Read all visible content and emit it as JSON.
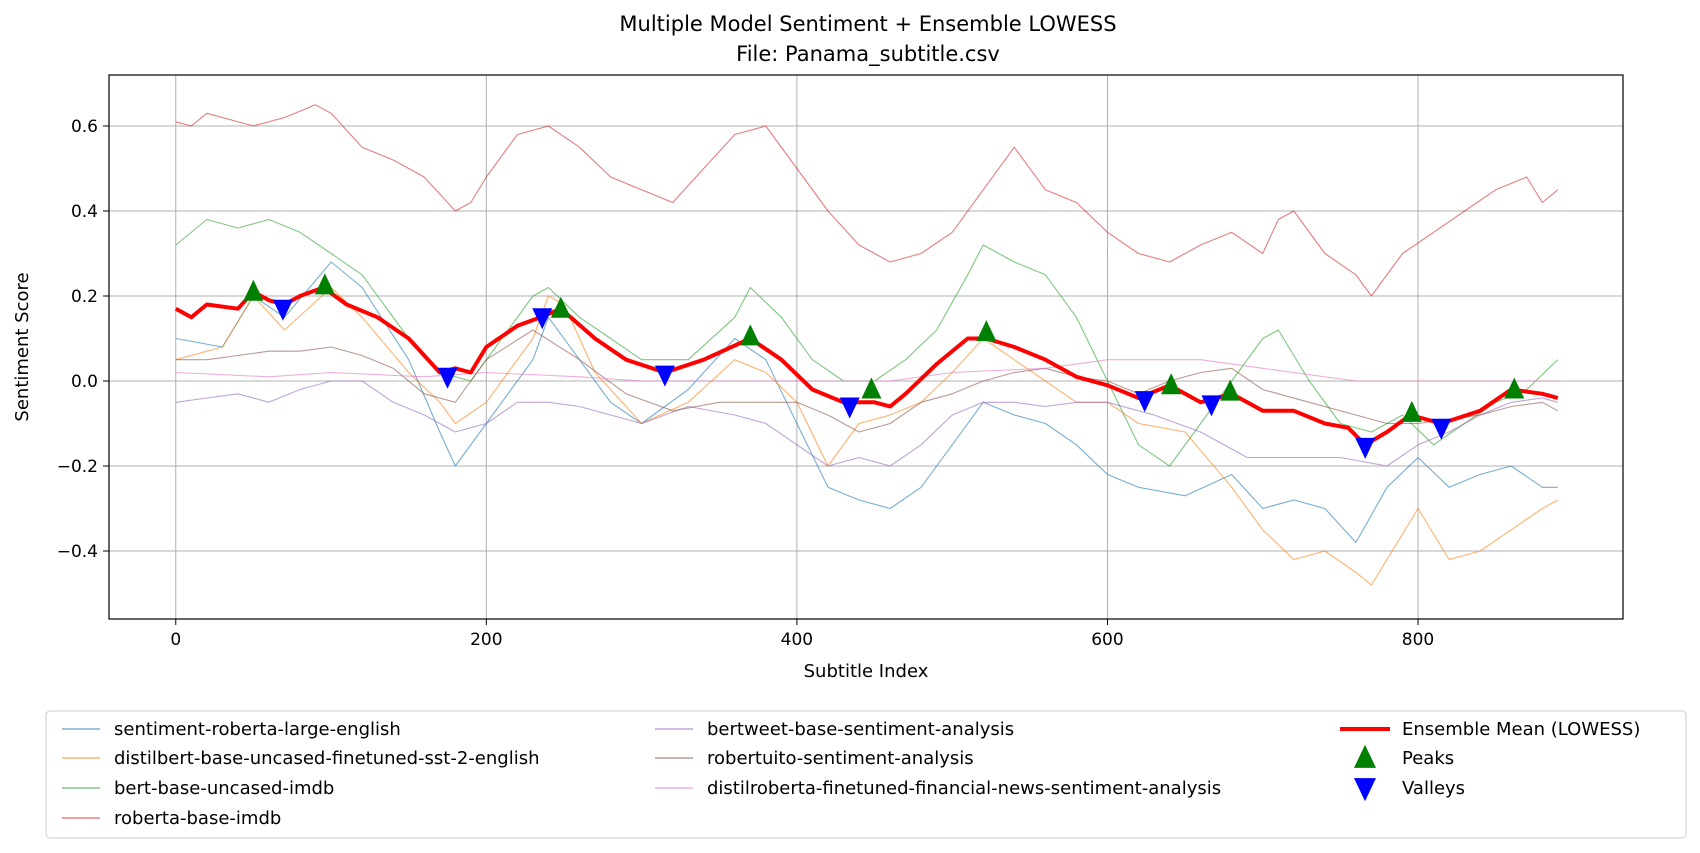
{
  "chart_data": {
    "type": "line",
    "title": "Multiple Model Sentiment + Ensemble LOWESS",
    "subtitle": "File: Panama_subtitle.csv",
    "xlabel": "Subtitle Index",
    "ylabel": "Sentiment Score",
    "xlim": [
      -43,
      932
    ],
    "ylim": [
      -0.56,
      0.72
    ],
    "xticks": [
      0,
      200,
      400,
      600,
      800
    ],
    "xtick_labels": [
      "0",
      "200",
      "400",
      "600",
      "800"
    ],
    "yticks": [
      -0.4,
      -0.2,
      0.0,
      0.2,
      0.4,
      0.6
    ],
    "ytick_labels": [
      "−0.4",
      "−0.2",
      "0.0",
      "0.2",
      "0.4",
      "0.6"
    ],
    "grid": true,
    "legend_position": "below-plot",
    "series": [
      {
        "name": "sentiment-roberta-large-english",
        "color": "#1f77b4",
        "x": [
          0,
          30,
          50,
          70,
          100,
          120,
          150,
          170,
          180,
          200,
          230,
          240,
          260,
          280,
          300,
          330,
          360,
          380,
          400,
          420,
          440,
          460,
          480,
          500,
          520,
          540,
          560,
          580,
          600,
          620,
          650,
          680,
          700,
          720,
          740,
          760,
          780,
          800,
          820,
          840,
          860,
          880,
          890
        ],
        "y": [
          0.1,
          0.08,
          0.2,
          0.15,
          0.28,
          0.22,
          0.05,
          -0.12,
          -0.2,
          -0.1,
          0.05,
          0.15,
          0.05,
          -0.05,
          -0.1,
          -0.02,
          0.1,
          0.05,
          -0.1,
          -0.25,
          -0.28,
          -0.3,
          -0.25,
          -0.15,
          -0.05,
          -0.08,
          -0.1,
          -0.15,
          -0.22,
          -0.25,
          -0.27,
          -0.22,
          -0.3,
          -0.28,
          -0.3,
          -0.38,
          -0.25,
          -0.18,
          -0.25,
          -0.22,
          -0.2,
          -0.25,
          -0.25
        ]
      },
      {
        "name": "distilbert-base-uncased-finetuned-sst-2-english",
        "color": "#ff7f0e",
        "x": [
          0,
          30,
          50,
          70,
          100,
          120,
          150,
          170,
          180,
          200,
          230,
          240,
          250,
          270,
          300,
          330,
          360,
          380,
          400,
          420,
          440,
          460,
          480,
          500,
          520,
          540,
          560,
          580,
          600,
          620,
          650,
          680,
          700,
          720,
          740,
          760,
          770,
          780,
          800,
          820,
          840,
          860,
          880,
          890
        ],
        "y": [
          0.05,
          0.08,
          0.2,
          0.12,
          0.22,
          0.15,
          0.02,
          -0.05,
          -0.1,
          -0.05,
          0.1,
          0.2,
          0.18,
          0.02,
          -0.1,
          -0.05,
          0.05,
          0.02,
          -0.05,
          -0.2,
          -0.1,
          -0.08,
          -0.05,
          0.02,
          0.1,
          0.05,
          0.0,
          -0.05,
          -0.05,
          -0.1,
          -0.12,
          -0.25,
          -0.35,
          -0.42,
          -0.4,
          -0.45,
          -0.48,
          -0.42,
          -0.3,
          -0.42,
          -0.4,
          -0.35,
          -0.3,
          -0.28
        ]
      },
      {
        "name": "bert-base-uncased-imdb",
        "color": "#2ca02c",
        "x": [
          0,
          20,
          40,
          60,
          80,
          100,
          120,
          150,
          170,
          190,
          210,
          230,
          240,
          260,
          280,
          300,
          330,
          360,
          370,
          390,
          410,
          430,
          450,
          470,
          490,
          510,
          520,
          540,
          560,
          580,
          600,
          620,
          640,
          660,
          680,
          700,
          710,
          730,
          750,
          770,
          790,
          810,
          830,
          850,
          870,
          890
        ],
        "y": [
          0.32,
          0.38,
          0.36,
          0.38,
          0.35,
          0.3,
          0.25,
          0.1,
          0.02,
          0.0,
          0.1,
          0.2,
          0.22,
          0.15,
          0.1,
          0.05,
          0.05,
          0.15,
          0.22,
          0.15,
          0.05,
          0.0,
          0.0,
          0.05,
          0.12,
          0.25,
          0.32,
          0.28,
          0.25,
          0.15,
          0.0,
          -0.15,
          -0.2,
          -0.1,
          0.0,
          0.1,
          0.12,
          0.0,
          -0.1,
          -0.12,
          -0.08,
          -0.15,
          -0.1,
          -0.05,
          -0.02,
          0.05
        ]
      },
      {
        "name": "roberta-base-imdb",
        "color": "#d62728",
        "x": [
          0,
          10,
          20,
          30,
          50,
          70,
          90,
          100,
          120,
          140,
          160,
          180,
          190,
          200,
          220,
          240,
          260,
          280,
          300,
          320,
          340,
          360,
          380,
          400,
          420,
          440,
          460,
          480,
          500,
          520,
          540,
          560,
          580,
          600,
          620,
          640,
          660,
          680,
          700,
          710,
          720,
          740,
          760,
          770,
          790,
          810,
          830,
          850,
          870,
          880,
          890
        ],
        "y": [
          0.61,
          0.6,
          0.63,
          0.62,
          0.6,
          0.62,
          0.65,
          0.63,
          0.55,
          0.52,
          0.48,
          0.4,
          0.42,
          0.48,
          0.58,
          0.6,
          0.55,
          0.48,
          0.45,
          0.42,
          0.5,
          0.58,
          0.6,
          0.5,
          0.4,
          0.32,
          0.28,
          0.3,
          0.35,
          0.45,
          0.55,
          0.45,
          0.42,
          0.35,
          0.3,
          0.28,
          0.32,
          0.35,
          0.3,
          0.38,
          0.4,
          0.3,
          0.25,
          0.2,
          0.3,
          0.35,
          0.4,
          0.45,
          0.48,
          0.42,
          0.45
        ]
      },
      {
        "name": "bertweet-base-sentiment-analysis",
        "color": "#9467bd",
        "x": [
          0,
          20,
          40,
          60,
          80,
          100,
          120,
          140,
          160,
          180,
          200,
          220,
          240,
          260,
          280,
          300,
          330,
          360,
          380,
          400,
          420,
          440,
          460,
          480,
          500,
          520,
          540,
          560,
          580,
          600,
          630,
          660,
          690,
          720,
          750,
          780,
          800,
          820,
          840,
          860,
          880,
          890
        ],
        "y": [
          -0.05,
          -0.04,
          -0.03,
          -0.05,
          -0.02,
          0.0,
          0.0,
          -0.05,
          -0.08,
          -0.12,
          -0.1,
          -0.05,
          -0.05,
          -0.06,
          -0.08,
          -0.1,
          -0.06,
          -0.08,
          -0.1,
          -0.15,
          -0.2,
          -0.18,
          -0.2,
          -0.15,
          -0.08,
          -0.05,
          -0.05,
          -0.06,
          -0.05,
          -0.05,
          -0.08,
          -0.12,
          -0.18,
          -0.18,
          -0.18,
          -0.2,
          -0.15,
          -0.12,
          -0.08,
          -0.05,
          -0.04,
          -0.05
        ]
      },
      {
        "name": "robertuito-sentiment-analysis",
        "color": "#8c564b",
        "x": [
          0,
          20,
          40,
          60,
          80,
          100,
          120,
          140,
          160,
          180,
          200,
          230,
          260,
          290,
          320,
          350,
          380,
          400,
          420,
          440,
          460,
          480,
          500,
          520,
          540,
          560,
          580,
          600,
          620,
          640,
          660,
          680,
          700,
          730,
          760,
          780,
          800,
          820,
          840,
          860,
          880,
          890
        ],
        "y": [
          0.05,
          0.05,
          0.06,
          0.07,
          0.07,
          0.08,
          0.06,
          0.03,
          -0.03,
          -0.05,
          0.05,
          0.12,
          0.05,
          -0.03,
          -0.07,
          -0.05,
          -0.05,
          -0.05,
          -0.08,
          -0.12,
          -0.1,
          -0.05,
          -0.03,
          0.0,
          0.02,
          0.03,
          0.01,
          0.0,
          -0.03,
          0.0,
          0.02,
          0.03,
          -0.02,
          -0.05,
          -0.08,
          -0.1,
          -0.1,
          -0.09,
          -0.08,
          -0.06,
          -0.05,
          -0.07
        ]
      },
      {
        "name": "distilroberta-finetuned-financial-news-sentiment-analysis",
        "color": "#e377c2",
        "x": [
          0,
          60,
          100,
          160,
          200,
          260,
          300,
          360,
          400,
          460,
          500,
          560,
          600,
          660,
          700,
          760,
          800,
          860,
          890
        ],
        "y": [
          0.02,
          0.01,
          0.02,
          0.01,
          0.02,
          0.01,
          0.0,
          0.0,
          0.0,
          0.0,
          0.02,
          0.03,
          0.05,
          0.05,
          0.03,
          0.0,
          0.0,
          0.0,
          0.0
        ]
      },
      {
        "name": "Ensemble Mean (LOWESS)",
        "color": "#ff0000",
        "x": [
          0,
          10,
          20,
          40,
          50,
          60,
          70,
          80,
          95,
          110,
          130,
          150,
          170,
          180,
          190,
          200,
          220,
          235,
          248,
          270,
          290,
          315,
          340,
          370,
          390,
          410,
          430,
          450,
          460,
          470,
          490,
          510,
          522,
          540,
          560,
          580,
          600,
          620,
          640,
          660,
          680,
          700,
          720,
          740,
          755,
          766,
          780,
          795,
          815,
          840,
          860,
          880,
          890
        ],
        "y": [
          0.17,
          0.15,
          0.18,
          0.17,
          0.21,
          0.19,
          0.18,
          0.2,
          0.22,
          0.18,
          0.15,
          0.1,
          0.02,
          0.03,
          0.02,
          0.08,
          0.13,
          0.15,
          0.17,
          0.1,
          0.05,
          0.02,
          0.05,
          0.1,
          0.05,
          -0.02,
          -0.05,
          -0.05,
          -0.06,
          -0.03,
          0.04,
          0.1,
          0.1,
          0.08,
          0.05,
          0.01,
          -0.01,
          -0.04,
          -0.01,
          -0.05,
          -0.03,
          -0.07,
          -0.07,
          -0.1,
          -0.11,
          -0.15,
          -0.12,
          -0.08,
          -0.1,
          -0.07,
          -0.02,
          -0.03,
          -0.04
        ]
      }
    ],
    "peaks": {
      "name": "Peaks",
      "color": "#008000",
      "x": [
        50,
        96,
        248,
        370,
        448,
        522,
        641,
        679,
        796,
        862
      ],
      "y": [
        0.21,
        0.225,
        0.17,
        0.105,
        -0.02,
        0.115,
        -0.01,
        -0.025,
        -0.075,
        -0.02
      ]
    },
    "valleys": {
      "name": "Valleys",
      "color": "#0000ff",
      "x": [
        69,
        175,
        236,
        315,
        434,
        624,
        667,
        766,
        815
      ],
      "y": [
        0.17,
        0.01,
        0.15,
        0.015,
        -0.06,
        -0.045,
        -0.055,
        -0.155,
        -0.11
      ]
    }
  }
}
